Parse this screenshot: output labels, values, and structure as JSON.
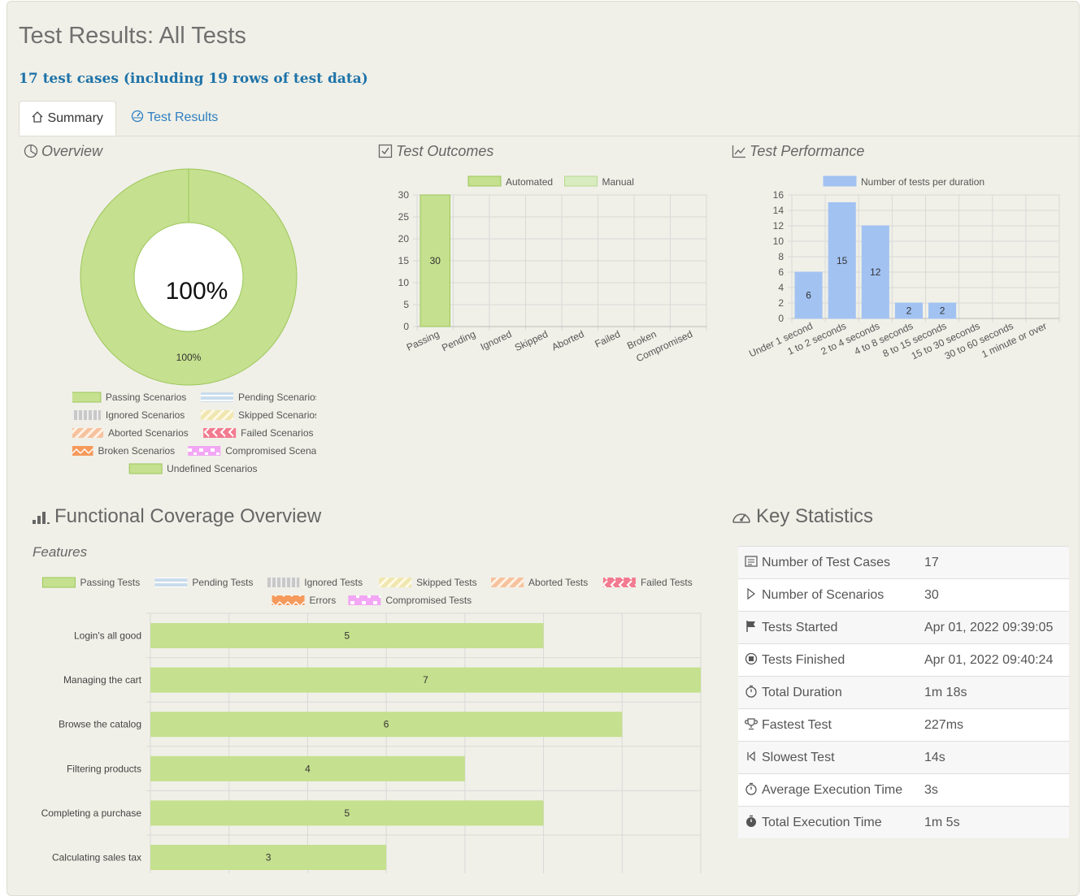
{
  "page": {
    "title": "Test Results: All Tests",
    "subtitle": "17 test cases (including 19 rows of test data)"
  },
  "tabs": [
    {
      "label": "Summary",
      "icon": "home-icon",
      "active": true
    },
    {
      "label": "Test Results",
      "icon": "gauge-icon",
      "active": false
    }
  ],
  "overview": {
    "title": "Overview",
    "center_label": "100%",
    "chart_data": {
      "type": "pie",
      "title": "Overview",
      "labels": [
        "Passing Scenarios"
      ],
      "values": [
        100
      ],
      "slice_label": "100%"
    },
    "legend": [
      "Passing Scenarios",
      "Pending Scenarios",
      "Ignored Scenarios",
      "Skipped Scenarios",
      "Aborted Scenarios",
      "Failed Scenarios",
      "Broken Scenarios",
      "Compromised Scenarios",
      "Undefined Scenarios"
    ]
  },
  "outcomes": {
    "title": "Test Outcomes",
    "chart_data": {
      "type": "bar",
      "title": "Test Outcomes",
      "categories": [
        "Passing",
        "Pending",
        "Ignored",
        "Skipped",
        "Aborted",
        "Failed",
        "Broken",
        "Compromised"
      ],
      "series": [
        {
          "name": "Automated",
          "values": [
            30,
            0,
            0,
            0,
            0,
            0,
            0,
            0
          ]
        },
        {
          "name": "Manual",
          "values": [
            0,
            0,
            0,
            0,
            0,
            0,
            0,
            0
          ]
        }
      ],
      "ylim": [
        0,
        30
      ],
      "yticks": [
        0,
        5,
        10,
        15,
        20,
        25,
        30
      ]
    }
  },
  "performance": {
    "title": "Test Performance",
    "chart_data": {
      "type": "bar",
      "title": "Test Performance",
      "categories": [
        "Under 1 second",
        "1 to 2 seconds",
        "2 to 4 seconds",
        "4 to 8 seconds",
        "8 to 15 seconds",
        "15 to 30 seconds",
        "30 to 60 seconds",
        "1 minute or over"
      ],
      "series": [
        {
          "name": "Number of tests per duration",
          "values": [
            6,
            15,
            12,
            2,
            2,
            0,
            0,
            0
          ]
        }
      ],
      "ylim": [
        0,
        16
      ],
      "yticks": [
        0,
        2,
        4,
        6,
        8,
        10,
        12,
        14,
        16
      ]
    }
  },
  "coverage": {
    "title": "Functional Coverage Overview",
    "subtitle": "Features",
    "legend": [
      "Passing Tests",
      "Pending Tests",
      "Ignored Tests",
      "Skipped Tests",
      "Aborted Tests",
      "Failed Tests",
      "Errors",
      "Compromised Tests"
    ],
    "chart_data": {
      "type": "bar",
      "orientation": "horizontal",
      "title": "Features",
      "categories": [
        "Login's all good",
        "Managing the cart",
        "Browse the catalog",
        "Filtering products",
        "Completing a purchase",
        "Calculating sales tax"
      ],
      "series": [
        {
          "name": "Passing Tests",
          "values": [
            5,
            7,
            6,
            4,
            5,
            3
          ]
        }
      ],
      "xlim": [
        0,
        7
      ]
    }
  },
  "key_stats": {
    "title": "Key Statistics",
    "rows": [
      {
        "label": "Number of Test Cases",
        "value": "17",
        "icon": "list-icon"
      },
      {
        "label": "Number of Scenarios",
        "value": "30",
        "icon": "play-icon"
      },
      {
        "label": "Tests Started",
        "value": "Apr 01, 2022 09:39:05",
        "icon": "flag-icon"
      },
      {
        "label": "Tests Finished",
        "value": "Apr 01, 2022 09:40:24",
        "icon": "stop-circle-icon"
      },
      {
        "label": "Total Duration",
        "value": "1m 18s",
        "icon": "stopwatch-icon"
      },
      {
        "label": "Fastest Test",
        "value": "227ms",
        "icon": "trophy-icon"
      },
      {
        "label": "Slowest Test",
        "value": "14s",
        "icon": "skip-back-icon"
      },
      {
        "label": "Average Execution Time",
        "value": "3s",
        "icon": "stopwatch-icon"
      },
      {
        "label": "Total Execution Time",
        "value": "1m 5s",
        "icon": "stopwatch-filled-icon"
      }
    ]
  },
  "colors": {
    "passing": "#c5e08e",
    "passing_border": "#9cc65a",
    "pending": "#c8dcec",
    "ignored": "#c8c8c8",
    "skipped": "#eee2a2",
    "aborted": "#f6c29e",
    "failed": "#f27b8f",
    "broken": "#f59a5c",
    "compromised": "#f2a6f4",
    "performance": "#a2c2f2",
    "manual": "#d8ecc0",
    "link": "#2e7fc0"
  }
}
